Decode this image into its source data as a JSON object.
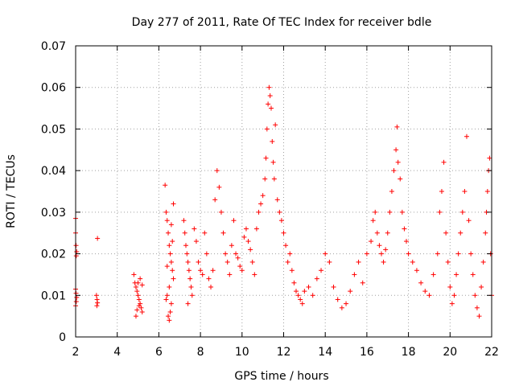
{
  "chart_data": {
    "type": "scatter",
    "title": "Day 277 of 2011, Rate Of TEC Index for receiver bdle",
    "xlabel": "GPS time / hours",
    "ylabel": "ROTI / TECUs",
    "xlim": [
      2,
      22
    ],
    "ylim": [
      0,
      0.07
    ],
    "x_ticks": [
      "2",
      "4",
      "6",
      "8",
      "10",
      "12",
      "14",
      "16",
      "18",
      "20",
      "22"
    ],
    "y_ticks": [
      "0",
      "0.01",
      "0.02",
      "0.03",
      "0.04",
      "0.05",
      "0.06",
      "0.07"
    ],
    "grid": true,
    "marker": "+",
    "color": "#ff0000",
    "series": [
      {
        "values_by_hour": [
          [
            2.0,
            0.0285
          ],
          [
            2.0,
            0.025
          ],
          [
            2.02,
            0.022
          ],
          [
            2.05,
            0.0205
          ],
          [
            2.03,
            0.0195
          ],
          [
            2.0,
            0.0115
          ],
          [
            2.02,
            0.0105
          ],
          [
            2.05,
            0.0095
          ],
          [
            2.03,
            0.0085
          ],
          [
            2.0,
            0.0075
          ],
          [
            3.05,
            0.0237
          ],
          [
            3.0,
            0.01
          ],
          [
            3.03,
            0.009
          ],
          [
            3.05,
            0.0082
          ],
          [
            3.02,
            0.0075
          ],
          [
            4.8,
            0.015
          ],
          [
            4.85,
            0.013
          ],
          [
            4.9,
            0.012
          ],
          [
            4.95,
            0.011
          ],
          [
            5.0,
            0.01
          ],
          [
            5.05,
            0.009
          ],
          [
            5.1,
            0.008
          ],
          [
            5.15,
            0.007
          ],
          [
            5.2,
            0.006
          ],
          [
            4.9,
            0.005
          ],
          [
            5.0,
            0.013
          ],
          [
            5.1,
            0.014
          ],
          [
            5.2,
            0.0125
          ],
          [
            4.95,
            0.0065
          ],
          [
            5.05,
            0.0075
          ],
          [
            6.3,
            0.0365
          ],
          [
            6.35,
            0.03
          ],
          [
            6.4,
            0.028
          ],
          [
            6.45,
            0.025
          ],
          [
            6.5,
            0.022
          ],
          [
            6.55,
            0.02
          ],
          [
            6.6,
            0.018
          ],
          [
            6.65,
            0.016
          ],
          [
            6.7,
            0.014
          ],
          [
            6.5,
            0.012
          ],
          [
            6.4,
            0.01
          ],
          [
            6.6,
            0.008
          ],
          [
            6.55,
            0.006
          ],
          [
            6.45,
            0.005
          ],
          [
            6.5,
            0.004
          ],
          [
            6.35,
            0.009
          ],
          [
            6.7,
            0.032
          ],
          [
            6.6,
            0.027
          ],
          [
            6.65,
            0.023
          ],
          [
            6.4,
            0.017
          ],
          [
            7.2,
            0.028
          ],
          [
            7.25,
            0.025
          ],
          [
            7.3,
            0.022
          ],
          [
            7.35,
            0.02
          ],
          [
            7.4,
            0.018
          ],
          [
            7.45,
            0.016
          ],
          [
            7.5,
            0.014
          ],
          [
            7.55,
            0.012
          ],
          [
            7.6,
            0.01
          ],
          [
            7.4,
            0.008
          ],
          [
            7.7,
            0.026
          ],
          [
            7.8,
            0.023
          ],
          [
            7.9,
            0.018
          ],
          [
            8.0,
            0.016
          ],
          [
            8.1,
            0.015
          ],
          [
            8.2,
            0.025
          ],
          [
            8.3,
            0.02
          ],
          [
            8.4,
            0.014
          ],
          [
            8.5,
            0.012
          ],
          [
            8.6,
            0.016
          ],
          [
            8.7,
            0.033
          ],
          [
            8.8,
            0.04
          ],
          [
            8.9,
            0.036
          ],
          [
            9.0,
            0.03
          ],
          [
            9.1,
            0.025
          ],
          [
            9.2,
            0.02
          ],
          [
            9.3,
            0.018
          ],
          [
            9.4,
            0.015
          ],
          [
            9.5,
            0.022
          ],
          [
            9.6,
            0.028
          ],
          [
            9.7,
            0.02
          ],
          [
            9.8,
            0.019
          ],
          [
            9.9,
            0.017
          ],
          [
            10.0,
            0.016
          ],
          [
            10.1,
            0.024
          ],
          [
            10.2,
            0.026
          ],
          [
            10.3,
            0.023
          ],
          [
            10.4,
            0.021
          ],
          [
            10.5,
            0.018
          ],
          [
            10.6,
            0.015
          ],
          [
            10.7,
            0.026
          ],
          [
            10.8,
            0.03
          ],
          [
            10.9,
            0.032
          ],
          [
            11.0,
            0.034
          ],
          [
            11.1,
            0.038
          ],
          [
            11.15,
            0.043
          ],
          [
            11.2,
            0.05
          ],
          [
            11.25,
            0.056
          ],
          [
            11.3,
            0.06
          ],
          [
            11.35,
            0.058
          ],
          [
            11.4,
            0.055
          ],
          [
            11.45,
            0.047
          ],
          [
            11.5,
            0.042
          ],
          [
            11.55,
            0.038
          ],
          [
            11.6,
            0.051
          ],
          [
            11.7,
            0.033
          ],
          [
            11.8,
            0.03
          ],
          [
            11.9,
            0.028
          ],
          [
            12.0,
            0.025
          ],
          [
            12.1,
            0.022
          ],
          [
            12.2,
            0.018
          ],
          [
            12.3,
            0.02
          ],
          [
            12.4,
            0.016
          ],
          [
            12.5,
            0.013
          ],
          [
            12.6,
            0.011
          ],
          [
            12.7,
            0.01
          ],
          [
            12.8,
            0.009
          ],
          [
            12.9,
            0.008
          ],
          [
            13.0,
            0.011
          ],
          [
            13.2,
            0.012
          ],
          [
            13.4,
            0.01
          ],
          [
            13.6,
            0.014
          ],
          [
            13.8,
            0.016
          ],
          [
            14.0,
            0.02
          ],
          [
            14.2,
            0.018
          ],
          [
            14.4,
            0.012
          ],
          [
            14.6,
            0.009
          ],
          [
            14.8,
            0.007
          ],
          [
            15.0,
            0.008
          ],
          [
            15.2,
            0.011
          ],
          [
            15.4,
            0.015
          ],
          [
            15.6,
            0.018
          ],
          [
            15.8,
            0.013
          ],
          [
            16.0,
            0.02
          ],
          [
            16.2,
            0.023
          ],
          [
            16.3,
            0.028
          ],
          [
            16.4,
            0.03
          ],
          [
            16.5,
            0.025
          ],
          [
            16.6,
            0.022
          ],
          [
            16.7,
            0.02
          ],
          [
            16.8,
            0.018
          ],
          [
            16.9,
            0.021
          ],
          [
            17.0,
            0.025
          ],
          [
            17.1,
            0.03
          ],
          [
            17.2,
            0.035
          ],
          [
            17.3,
            0.04
          ],
          [
            17.4,
            0.045
          ],
          [
            17.45,
            0.0505
          ],
          [
            17.5,
            0.042
          ],
          [
            17.6,
            0.038
          ],
          [
            17.7,
            0.03
          ],
          [
            17.8,
            0.026
          ],
          [
            17.9,
            0.023
          ],
          [
            18.0,
            0.02
          ],
          [
            18.2,
            0.018
          ],
          [
            18.4,
            0.016
          ],
          [
            18.6,
            0.013
          ],
          [
            18.8,
            0.011
          ],
          [
            19.0,
            0.01
          ],
          [
            19.2,
            0.015
          ],
          [
            19.4,
            0.02
          ],
          [
            19.5,
            0.03
          ],
          [
            19.6,
            0.035
          ],
          [
            19.7,
            0.042
          ],
          [
            19.8,
            0.025
          ],
          [
            19.9,
            0.018
          ],
          [
            20.0,
            0.012
          ],
          [
            20.1,
            0.008
          ],
          [
            20.2,
            0.01
          ],
          [
            20.3,
            0.015
          ],
          [
            20.4,
            0.02
          ],
          [
            20.5,
            0.025
          ],
          [
            20.6,
            0.03
          ],
          [
            20.7,
            0.035
          ],
          [
            20.8,
            0.0482
          ],
          [
            20.9,
            0.028
          ],
          [
            21.0,
            0.02
          ],
          [
            21.1,
            0.015
          ],
          [
            21.2,
            0.01
          ],
          [
            21.3,
            0.007
          ],
          [
            21.4,
            0.005
          ],
          [
            21.5,
            0.012
          ],
          [
            21.6,
            0.018
          ],
          [
            21.7,
            0.025
          ],
          [
            21.75,
            0.03
          ],
          [
            21.8,
            0.035
          ],
          [
            21.85,
            0.04
          ],
          [
            21.9,
            0.043
          ],
          [
            21.95,
            0.02
          ],
          [
            22.0,
            0.01
          ]
        ]
      }
    ]
  }
}
